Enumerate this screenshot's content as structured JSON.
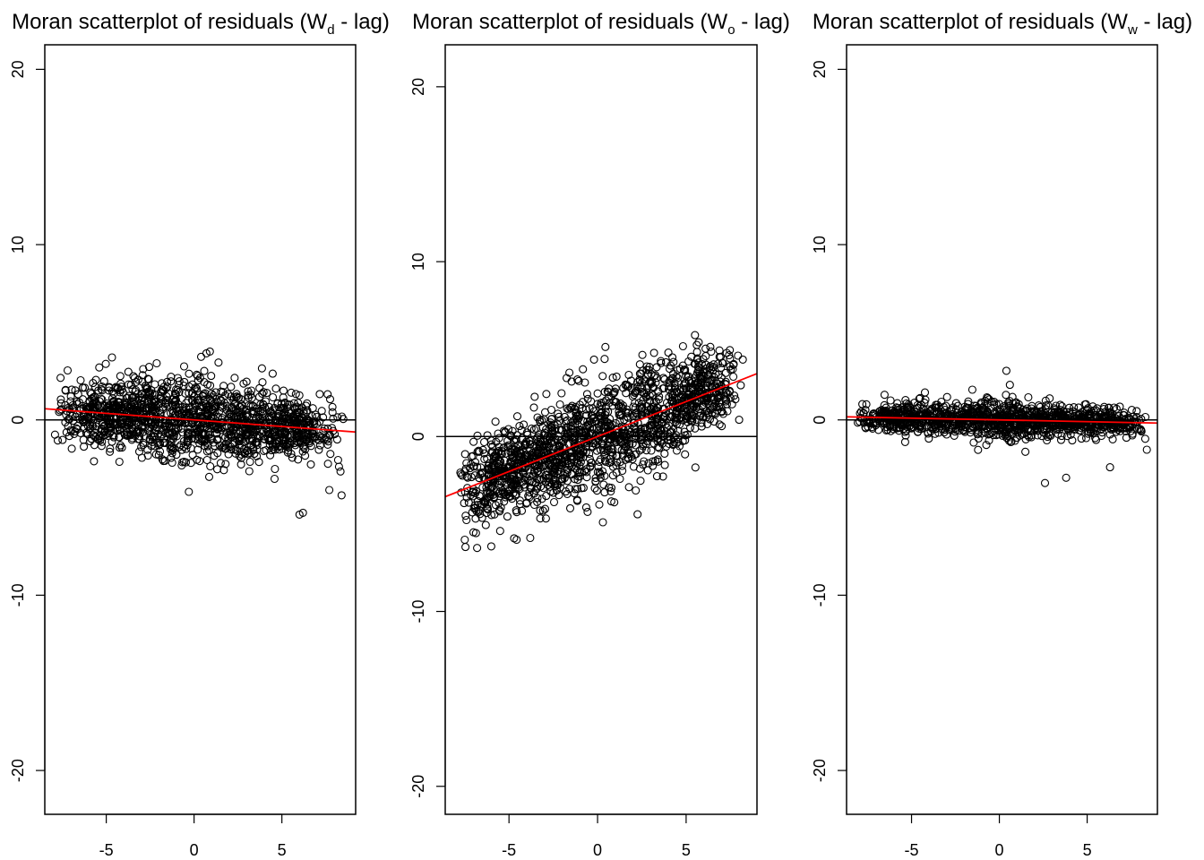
{
  "figure": {
    "panels": [
      {
        "title_main": "Moran scatterplot of residuals (W",
        "title_sub": "d",
        "title_end": " - lag)"
      },
      {
        "title_main": "Moran scatterplot of residuals (W",
        "title_sub": "o",
        "title_end": " - lag)"
      },
      {
        "title_main": "Moran scatterplot of residuals (W",
        "title_sub": "w",
        "title_end": " - lag)"
      }
    ]
  },
  "colors": {
    "points": "#000000",
    "regression_line": "#ff0000",
    "zero_line": "#000000"
  },
  "chart_data": [
    {
      "type": "scatter",
      "title": "Moran scatterplot of residuals (Wd - lag)",
      "xlabel": "",
      "ylabel": "",
      "xlim": [
        -8.5,
        9.2
      ],
      "ylim": [
        -22.5,
        21.4
      ],
      "x_ticks": [
        -5,
        0,
        5
      ],
      "y_ticks": [
        -20,
        -10,
        0,
        10,
        20
      ],
      "hline_y": 0,
      "regression": {
        "slope": -0.075,
        "intercept": 0.0
      },
      "cloud": {
        "x_range": [
          -8,
          8.5
        ],
        "spread_y": 1.2,
        "n_points": 1400,
        "highlights": [
          [
            0.7,
            3.8
          ],
          [
            0.9,
            3.9
          ],
          [
            0.4,
            3.6
          ],
          [
            -2.9,
            2.9
          ],
          [
            -7.6,
            2.4
          ],
          [
            6.2,
            -5.3
          ],
          [
            6.0,
            -5.4
          ],
          [
            8.4,
            -4.3
          ],
          [
            -0.3,
            -4.1
          ],
          [
            7.7,
            -4.0
          ]
        ]
      },
      "grid": false,
      "legend": "none"
    },
    {
      "type": "scatter",
      "title": "Moran scatterplot of residuals (Wo - lag)",
      "xlabel": "",
      "ylabel": "",
      "xlim": [
        -8.6,
        9.0
      ],
      "ylim": [
        -21.6,
        22.4
      ],
      "x_ticks": [
        -5,
        0,
        5
      ],
      "y_ticks": [
        -20,
        -10,
        0,
        10,
        20
      ],
      "hline_y": 0,
      "regression": {
        "slope": 0.4,
        "intercept": 0.0
      },
      "cloud": {
        "x_range": [
          -8,
          8.2
        ],
        "spread_y": 1.6,
        "n_points": 1600,
        "highlights": [
          [
            5.5,
            5.8
          ],
          [
            8.2,
            4.4
          ],
          [
            -0.2,
            4.4
          ],
          [
            4.0,
            4.8
          ],
          [
            -7.5,
            -5.9
          ],
          [
            -3.8,
            -5.8
          ],
          [
            0.3,
            -4.9
          ],
          [
            -5.5,
            -5.4
          ],
          [
            -7.7,
            -3.2
          ]
        ]
      },
      "grid": false,
      "legend": "none"
    },
    {
      "type": "scatter",
      "title": "Moran scatterplot of residuals (Ww - lag)",
      "xlabel": "",
      "ylabel": "",
      "xlim": [
        -8.7,
        9.0
      ],
      "ylim": [
        -22.5,
        21.4
      ],
      "x_ticks": [
        -5,
        0,
        5
      ],
      "y_ticks": [
        -20,
        -10,
        0,
        10,
        20
      ],
      "hline_y": 0,
      "regression": {
        "slope": -0.02,
        "intercept": 0.0
      },
      "cloud": {
        "x_range": [
          -8.3,
          8.5
        ],
        "spread_y": 0.55,
        "n_points": 1200,
        "highlights": [
          [
            0.4,
            2.8
          ],
          [
            0.6,
            2.0
          ],
          [
            2.6,
            -3.6
          ],
          [
            3.8,
            -3.3
          ],
          [
            8.4,
            -1.7
          ],
          [
            -7.8,
            0.9
          ],
          [
            6.3,
            -2.7
          ]
        ]
      },
      "grid": false,
      "legend": "none"
    }
  ]
}
